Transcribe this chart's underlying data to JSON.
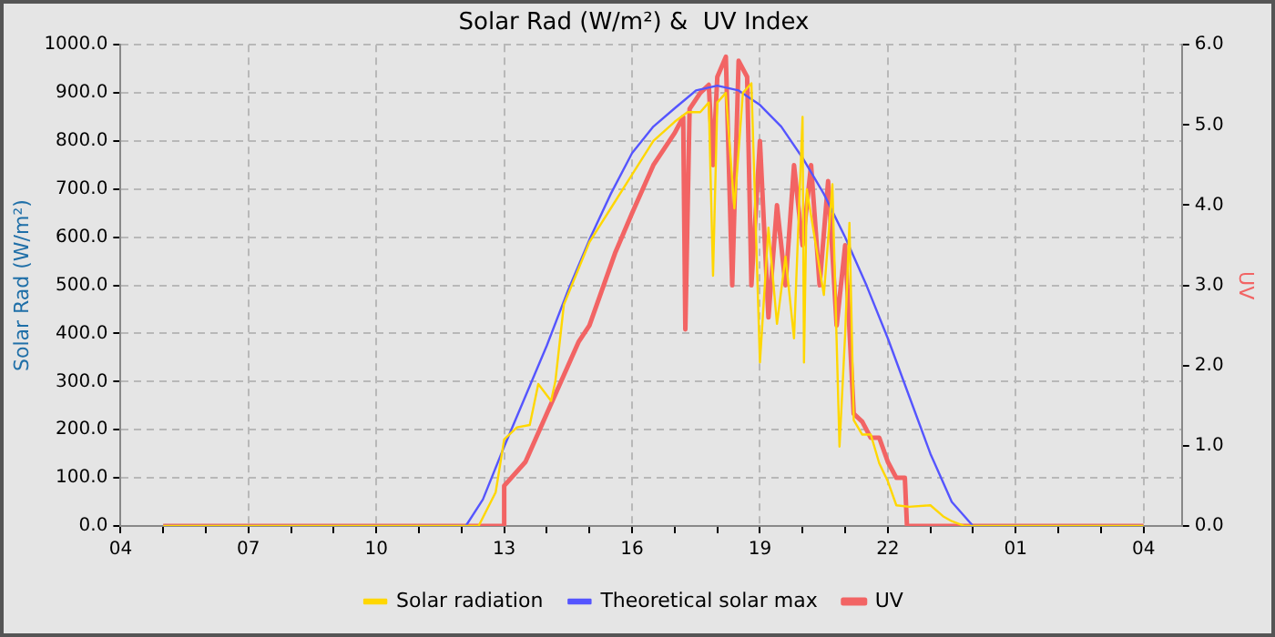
{
  "chart_data": {
    "type": "line",
    "title": "Solar Rad (W/m²) &  UV Index",
    "ylabel": "Solar Rad (W/m²)",
    "y2label": "UV",
    "xlim": [
      "--06-01T04:00",
      "--06-02T04:54"
    ],
    "xticks": [
      {
        "value": "--06-01T04:00",
        "label": "04"
      },
      {
        "value": "--06-01T05:00",
        "label": null
      },
      {
        "value": "--06-01T06:00",
        "label": null
      },
      {
        "value": "--06-01T07:00",
        "label": "07"
      },
      {
        "value": "--06-01T08:00",
        "label": null
      },
      {
        "value": "--06-01T09:00",
        "label": null
      },
      {
        "value": "--06-01T10:00",
        "label": "10"
      },
      {
        "value": "--06-01T11:00",
        "label": null
      },
      {
        "value": "--06-01T12:00",
        "label": null
      },
      {
        "value": "--06-01T13:00",
        "label": "13"
      },
      {
        "value": "--06-01T14:00",
        "label": null
      },
      {
        "value": "--06-01T15:00",
        "label": null
      },
      {
        "value": "--06-01T16:00",
        "label": "16"
      },
      {
        "value": "--06-01T17:00",
        "label": null
      },
      {
        "value": "--06-01T18:00",
        "label": null
      },
      {
        "value": "--06-01T19:00",
        "label": "19"
      },
      {
        "value": "--06-01T20:00",
        "label": null
      },
      {
        "value": "--06-01T21:00",
        "label": null
      },
      {
        "value": "--06-01T22:00",
        "label": "22"
      },
      {
        "value": "--06-01T23:00",
        "label": null
      },
      {
        "value": "--06-02T00:00",
        "label": null
      },
      {
        "value": "--06-02T01:00",
        "label": "01"
      },
      {
        "value": "--06-02T02:00",
        "label": null
      },
      {
        "value": "--06-02T03:00",
        "label": null
      },
      {
        "value": "--06-02T04:00",
        "label": "04"
      }
    ],
    "ylim": [
      0,
      1000
    ],
    "yticks": [
      {
        "value": 0,
        "label": "0.0"
      },
      {
        "value": 100,
        "label": "100.0"
      },
      {
        "value": 200,
        "label": "200.0"
      },
      {
        "value": 300,
        "label": "300.0"
      },
      {
        "value": 400,
        "label": "400.0"
      },
      {
        "value": 500,
        "label": "500.0"
      },
      {
        "value": 600,
        "label": "600.0"
      },
      {
        "value": 700,
        "label": "700.0"
      },
      {
        "value": 800,
        "label": "800.0"
      },
      {
        "value": 900,
        "label": "900.0"
      },
      {
        "value": 1000,
        "label": "1000.0"
      }
    ],
    "y2lim": [
      0,
      6
    ],
    "y2ticks": [
      {
        "value": 0,
        "label": "0.0"
      },
      {
        "value": 1,
        "label": "1.0"
      },
      {
        "value": 2,
        "label": "2.0"
      },
      {
        "value": 3,
        "label": "3.0"
      },
      {
        "value": 4,
        "label": "4.0"
      },
      {
        "value": 5,
        "label": "5.0"
      },
      {
        "value": 6,
        "label": "6.0"
      }
    ],
    "grid": true,
    "legend": "bottom",
    "marker": "none",
    "line_style": "solid",
    "series": [
      {
        "name": "Solar radiation",
        "color": "#ffd700",
        "x": [
          "--06-01T05:00",
          "--06-01T12:24",
          "--06-01T12:48",
          "--06-01T13:00",
          "--06-01T13:18",
          "--06-01T13:36",
          "--06-01T13:48",
          "--06-01T14:06",
          "--06-01T14:12",
          "--06-01T14:24",
          "--06-01T15:00",
          "--06-01T15:30",
          "--06-01T16:00",
          "--06-01T16:30",
          "--06-01T17:00",
          "--06-01T17:18",
          "--06-01T17:36",
          "--06-01T17:48",
          "--06-01T17:54",
          "--06-01T18:00",
          "--06-01T18:12",
          "--06-01T18:24",
          "--06-01T18:36",
          "--06-01T18:48",
          "--06-01T19:00",
          "--06-01T19:12",
          "--06-01T19:24",
          "--06-01T19:36",
          "--06-01T19:48",
          "--06-01T20:00",
          "--06-01T20:02",
          "--06-01T20:06",
          "--06-01T20:30",
          "--06-01T20:42",
          "--06-01T20:52",
          "--06-01T21:00",
          "--06-01T21:06",
          "--06-01T21:12",
          "--06-01T21:24",
          "--06-01T21:36",
          "--06-01T21:48",
          "--06-01T22:00",
          "--06-01T22:12",
          "--06-01T22:30",
          "--06-01T23:00",
          "--06-01T23:18",
          "--06-01T23:30",
          "--06-01T23:48",
          "--06-02T00:00",
          "--06-02T04:00"
        ],
        "values": [
          0,
          0,
          70,
          180,
          205,
          210,
          295,
          260,
          300,
          460,
          590,
          660,
          730,
          800,
          840,
          860,
          860,
          880,
          520,
          880,
          900,
          660,
          900,
          920,
          340,
          620,
          420,
          560,
          390,
          850,
          340,
          700,
          480,
          710,
          165,
          400,
          630,
          220,
          190,
          190,
          130,
          93,
          43,
          40,
          43,
          20,
          10,
          0,
          0,
          0
        ]
      },
      {
        "name": "Theoretical solar max",
        "color": "#5555ff",
        "x": [
          "--06-01T05:00",
          "--06-01T12:06",
          "--06-01T12:30",
          "--06-01T13:00",
          "--06-01T13:30",
          "--06-01T14:00",
          "--06-01T14:30",
          "--06-01T15:00",
          "--06-01T15:30",
          "--06-01T16:00",
          "--06-01T16:30",
          "--06-01T17:00",
          "--06-01T17:30",
          "--06-01T18:00",
          "--06-01T18:30",
          "--06-01T19:00",
          "--06-01T19:30",
          "--06-01T20:00",
          "--06-01T20:30",
          "--06-01T21:00",
          "--06-01T21:30",
          "--06-01T22:00",
          "--06-01T22:30",
          "--06-01T23:00",
          "--06-01T23:30",
          "--06-02T00:00",
          "--06-02T04:00"
        ],
        "values": [
          0,
          0,
          55,
          165,
          270,
          375,
          490,
          595,
          690,
          775,
          830,
          868,
          905,
          915,
          905,
          875,
          830,
          765,
          690,
          600,
          500,
          390,
          270,
          150,
          50,
          0,
          0
        ]
      },
      {
        "name": "UV",
        "color": "#f26464",
        "axis": "y2",
        "x": [
          "--06-01T05:00",
          "--06-01T13:00",
          "--06-01T13:00",
          "--06-01T13:30",
          "--06-01T14:00",
          "--06-01T14:45",
          "--06-01T15:00",
          "--06-01T15:36",
          "--06-01T16:00",
          "--06-01T16:30",
          "--06-01T17:00",
          "--06-01T17:12",
          "--06-01T17:15",
          "--06-01T17:21",
          "--06-01T17:36",
          "--06-01T17:48",
          "--06-01T17:54",
          "--06-01T18:00",
          "--06-01T18:12",
          "--06-01T18:21",
          "--06-01T18:30",
          "--06-01T18:42",
          "--06-01T18:48",
          "--06-01T19:00",
          "--06-01T19:12",
          "--06-01T19:24",
          "--06-01T19:36",
          "--06-01T19:48",
          "--06-01T20:00",
          "--06-01T20:12",
          "--06-01T20:24",
          "--06-01T20:36",
          "--06-01T20:48",
          "--06-01T21:00",
          "--06-01T21:12",
          "--06-01T21:24",
          "--06-01T21:36",
          "--06-01T21:48",
          "--06-01T22:00",
          "--06-01T22:12",
          "--06-01T22:24",
          "--06-01T22:27",
          "--06-02T04:00"
        ],
        "values": [
          0,
          0,
          0.5,
          0.8,
          1.4,
          2.3,
          2.5,
          3.4,
          3.9,
          4.5,
          4.9,
          5.1,
          2.45,
          5.2,
          5.4,
          5.5,
          4.5,
          5.6,
          5.85,
          3.0,
          5.8,
          5.6,
          3.0,
          4.8,
          2.6,
          4.0,
          3.0,
          4.5,
          3.5,
          4.5,
          3.0,
          4.3,
          2.5,
          3.5,
          1.4,
          1.3,
          1.1,
          1.1,
          0.8,
          0.6,
          0.6,
          0,
          0
        ]
      }
    ]
  }
}
